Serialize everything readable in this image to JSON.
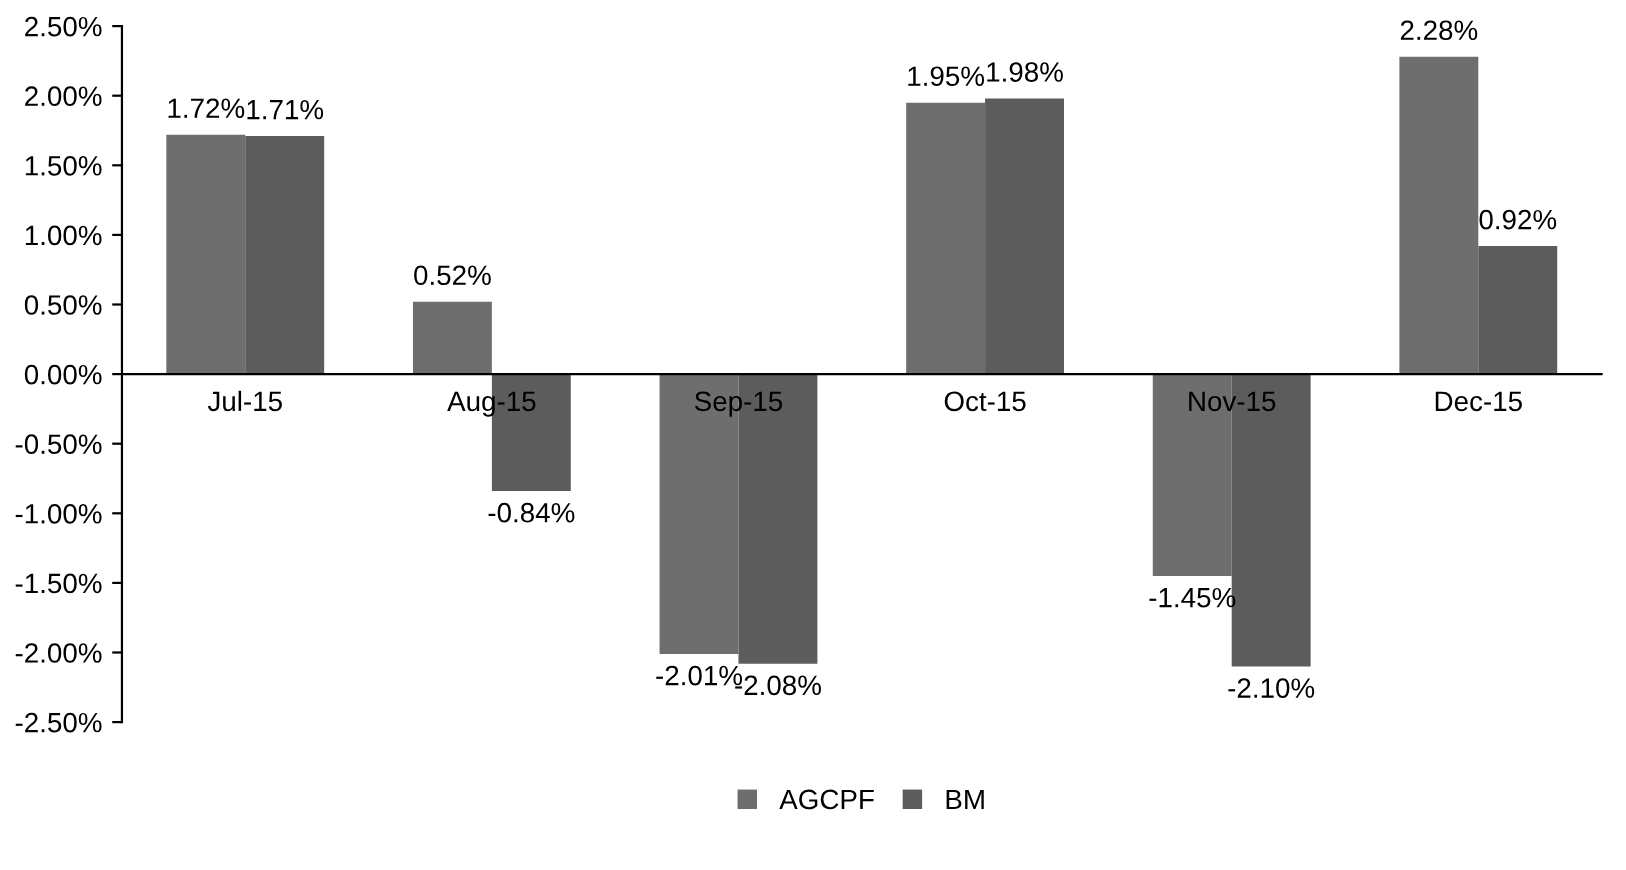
{
  "chart_data": {
    "type": "bar",
    "categories": [
      "Jul-15",
      "Aug-15",
      "Sep-15",
      "Oct-15",
      "Nov-15",
      "Dec-15"
    ],
    "series": [
      {
        "name": "AGCPF",
        "color": "#6e6e6e",
        "values": [
          1.72,
          0.52,
          -2.01,
          1.95,
          -1.45,
          2.28
        ],
        "value_labels": [
          "1.72%",
          "0.52%",
          "-2.01%",
          "1.95%",
          "-1.45%",
          "2.28%"
        ]
      },
      {
        "name": "BM",
        "color": "#5c5c5c",
        "values": [
          1.71,
          -0.84,
          -2.08,
          1.98,
          -2.1,
          0.92
        ],
        "value_labels": [
          "1.71%",
          "-0.84%",
          "-2.08%",
          "1.98%",
          "-2.10%",
          "0.92%"
        ]
      }
    ],
    "ylim": [
      -2.5,
      2.5
    ],
    "yticks": [
      {
        "value": -2.5,
        "label": "-2.50%"
      },
      {
        "value": -2.0,
        "label": "-2.00%"
      },
      {
        "value": -1.5,
        "label": "-1.50%"
      },
      {
        "value": -1.0,
        "label": "-1.00%"
      },
      {
        "value": -0.5,
        "label": "-0.50%"
      },
      {
        "value": 0,
        "label": "0.00%"
      },
      {
        "value": 0.5,
        "label": "0.50%"
      },
      {
        "value": 1.0,
        "label": "1.00%"
      },
      {
        "value": 1.5,
        "label": "1.50%"
      },
      {
        "value": 2.0,
        "label": "2.00%"
      },
      {
        "value": 2.5,
        "label": "2.50%"
      }
    ],
    "legend": "bottom",
    "grid": false
  }
}
